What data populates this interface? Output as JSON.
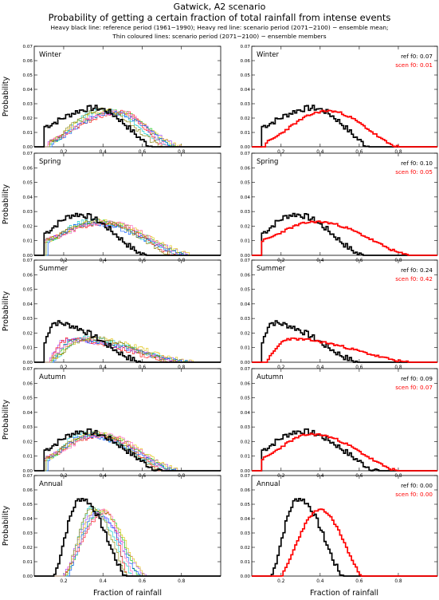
{
  "header": {
    "title": "Gatwick, A2 scenario",
    "subtitle": "Probability of getting a certain fraction of total rainfall from intense events",
    "legend_line1": "Heavy black line: reference period (1961−1990); Heavy red line: scenario period (2071−2100) − ensemble mean;",
    "legend_line2": "Thin coloured lines: scenario period (2071−2100) − ensemble members"
  },
  "colors": {
    "reference": "#000000",
    "scenario_mean": "#ff0000",
    "members": [
      "#9b30ff",
      "#00c800",
      "#00c8c8",
      "#ff0000",
      "#e0c000",
      "#0050ff",
      "#ff60c0",
      "#808000",
      "#ff8000",
      "#404040"
    ]
  },
  "chart_data": {
    "type": "line",
    "step": true,
    "xlabel": "Fraction of rainfall",
    "ylabel": "Probability",
    "xlim": [
      0.05,
      1.0
    ],
    "ylim": [
      0.0,
      0.07
    ],
    "xticks": [
      "0.2",
      "0.4",
      "0.6",
      "0.8"
    ],
    "yticks": [
      "0.00",
      "0.01",
      "0.02",
      "0.03",
      "0.04",
      "0.05",
      "0.06",
      "0.07"
    ],
    "f0_ref_label": "ref  f0:",
    "f0_scen_label": "scen f0:",
    "panels": [
      {
        "season": "Winter",
        "ref_f0": "0.07",
        "scen_f0": "0.01",
        "ref": {
          "start": 0.1,
          "end": 0.66,
          "peak": 0.36,
          "peak_y": 0.027,
          "early_y": 0.014
        },
        "scen": {
          "start": 0.12,
          "end": 0.8,
          "peak": 0.44,
          "peak_y": 0.025,
          "early_y": 0.003
        },
        "members": [
          0.44,
          0.47,
          0.4,
          0.5,
          0.42,
          0.45,
          0.48,
          0.39
        ]
      },
      {
        "season": "Spring",
        "ref_f0": "0.10",
        "scen_f0": "0.05",
        "ref": {
          "start": 0.1,
          "end": 0.62,
          "peak": 0.27,
          "peak_y": 0.028,
          "early_y": 0.015
        },
        "scen": {
          "start": 0.1,
          "end": 0.86,
          "peak": 0.38,
          "peak_y": 0.023,
          "early_y": 0.01
        },
        "members": [
          0.36,
          0.4,
          0.34,
          0.42,
          0.38,
          0.33,
          0.44,
          0.37
        ]
      },
      {
        "season": "Summer",
        "ref_f0": "0.24",
        "scen_f0": "0.42",
        "ref": {
          "start": 0.1,
          "end": 0.6,
          "peak": 0.15,
          "peak_y": 0.027,
          "early_y": 0.012
        },
        "scen": {
          "start": 0.13,
          "end": 0.86,
          "peak": 0.24,
          "peak_y": 0.016,
          "early_y": 0.002
        },
        "members": [
          0.2,
          0.26,
          0.3,
          0.22,
          0.32,
          0.24,
          0.28,
          0.34
        ]
      },
      {
        "season": "Autumn",
        "ref_f0": "0.09",
        "scen_f0": "0.07",
        "ref": {
          "start": 0.1,
          "end": 0.7,
          "peak": 0.3,
          "peak_y": 0.027,
          "early_y": 0.014
        },
        "scen": {
          "start": 0.1,
          "end": 0.8,
          "peak": 0.36,
          "peak_y": 0.025,
          "early_y": 0.008
        },
        "members": [
          0.34,
          0.38,
          0.3,
          0.4,
          0.36,
          0.32,
          0.42,
          0.35
        ]
      },
      {
        "season": "Annual",
        "ref_f0": "0.00",
        "scen_f0": "0.00",
        "ref": {
          "start": 0.15,
          "end": 0.52,
          "peak": 0.29,
          "peak_y": 0.054,
          "early_y": 0.0
        },
        "scen": {
          "start": 0.2,
          "end": 0.62,
          "peak": 0.4,
          "peak_y": 0.046,
          "early_y": 0.0
        },
        "members": [
          0.36,
          0.4,
          0.34,
          0.42,
          0.38,
          0.37,
          0.41,
          0.35
        ]
      }
    ]
  }
}
